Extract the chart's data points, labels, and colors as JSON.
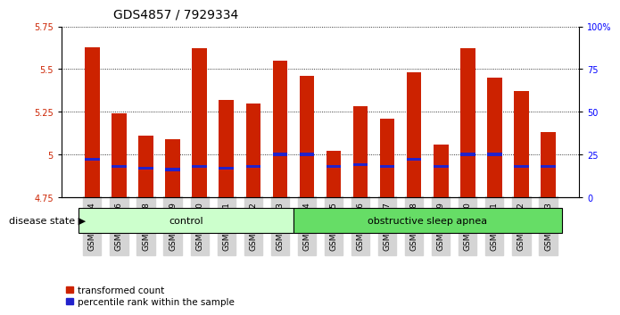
{
  "title": "GDS4857 / 7929334",
  "categories": [
    "GSM949164",
    "GSM949166",
    "GSM949168",
    "GSM949169",
    "GSM949170",
    "GSM949171",
    "GSM949172",
    "GSM949173",
    "GSM949174",
    "GSM949175",
    "GSM949176",
    "GSM949177",
    "GSM949178",
    "GSM949179",
    "GSM949180",
    "GSM949181",
    "GSM949182",
    "GSM949183"
  ],
  "red_values": [
    5.63,
    5.24,
    5.11,
    5.09,
    5.62,
    5.32,
    5.3,
    5.55,
    5.46,
    5.02,
    5.28,
    5.21,
    5.48,
    5.06,
    5.62,
    5.45,
    5.37,
    5.13
  ],
  "blue_positions": [
    4.97,
    4.93,
    4.92,
    4.91,
    4.93,
    4.92,
    4.93,
    5.0,
    5.0,
    4.93,
    4.94,
    4.93,
    4.97,
    4.93,
    5.0,
    5.0,
    4.93,
    4.93
  ],
  "ylim_left": [
    4.75,
    5.75
  ],
  "ylim_right": [
    0,
    100
  ],
  "y_ticks_left": [
    4.75,
    5.0,
    5.25,
    5.5,
    5.75
  ],
  "y_ticks_right": [
    0,
    25,
    50,
    75,
    100
  ],
  "bar_bottom": 4.75,
  "red_color": "#cc2200",
  "blue_color": "#2222cc",
  "control_count": 8,
  "apnea_count": 10,
  "control_label": "control",
  "apnea_label": "obstructive sleep apnea",
  "disease_state_label": "disease state",
  "legend_red": "transformed count",
  "legend_blue": "percentile rank within the sample",
  "control_color": "#ccffcc",
  "apnea_color": "#66dd66",
  "bar_width": 0.55,
  "title_fontsize": 10,
  "tick_fontsize": 7,
  "label_fontsize": 8,
  "xtick_bg_color": "#d4d4d4"
}
